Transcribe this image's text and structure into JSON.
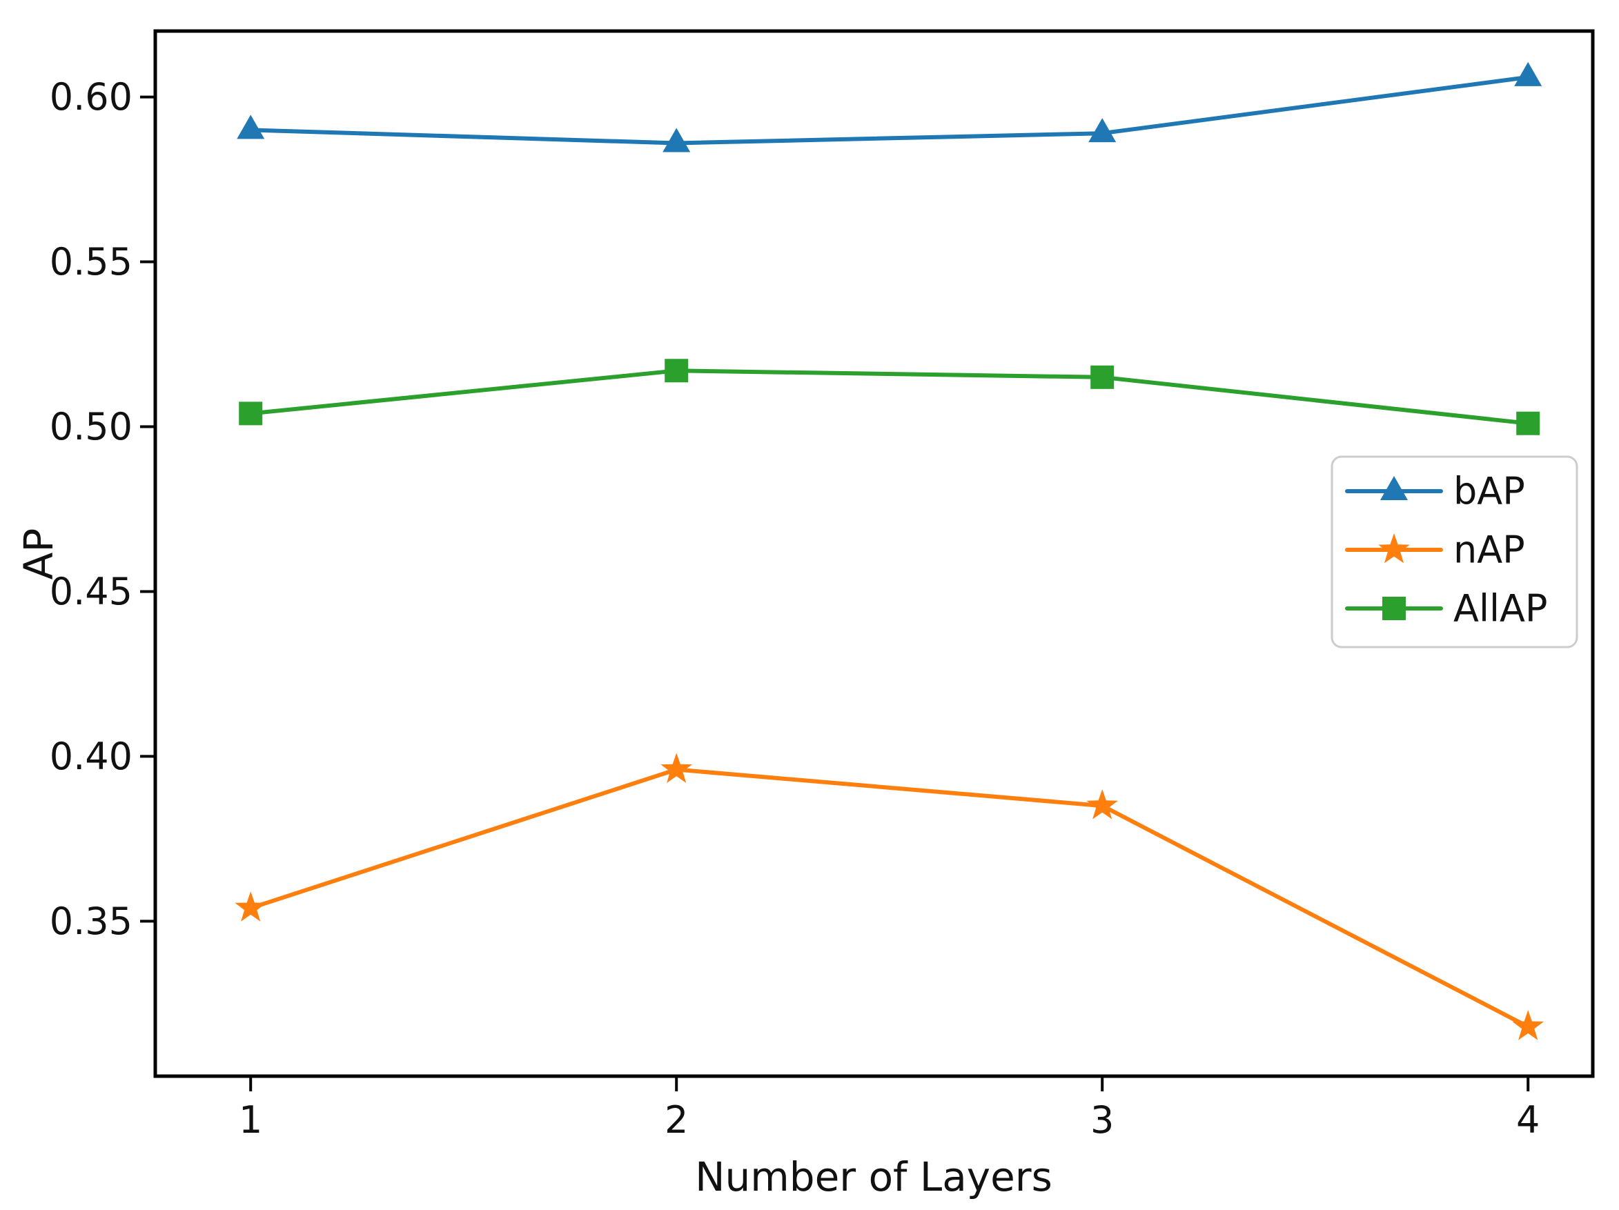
{
  "chart_data": {
    "type": "line",
    "title": "",
    "xlabel": "Number of Layers",
    "ylabel": "AP",
    "x": [
      1,
      2,
      3,
      4
    ],
    "x_tick_labels": [
      "1",
      "2",
      "3",
      "4"
    ],
    "y_ticks": [
      0.35,
      0.4,
      0.45,
      0.5,
      0.55,
      0.6
    ],
    "y_tick_labels": [
      "0.35",
      "0.40",
      "0.45",
      "0.50",
      "0.55",
      "0.60"
    ],
    "xlim": [
      0.776,
      4.152
    ],
    "ylim": [
      0.303,
      0.62
    ],
    "grid": false,
    "legend_position": "center right",
    "series": [
      {
        "name": "bAP",
        "color": "#1f77b4",
        "marker": "triangle-up",
        "values": [
          0.59,
          0.586,
          0.589,
          0.606
        ]
      },
      {
        "name": "nAP",
        "color": "#ff7f0e",
        "marker": "star",
        "values": [
          0.354,
          0.396,
          0.385,
          0.318
        ]
      },
      {
        "name": "AllAP",
        "color": "#2ca02c",
        "marker": "square",
        "values": [
          0.504,
          0.517,
          0.515,
          0.501
        ]
      }
    ],
    "axis_color": "#000000",
    "legend_border_color": "#cccccc",
    "legend_background": "#ffffff"
  }
}
